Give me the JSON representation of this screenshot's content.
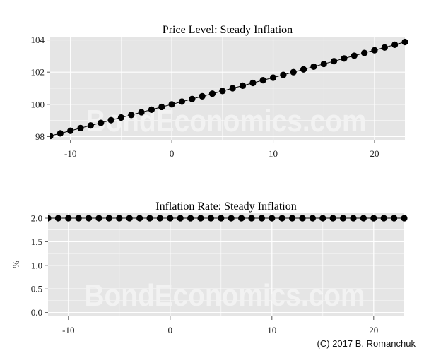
{
  "chart_data": [
    {
      "type": "line",
      "title": "Price Level: Steady Inflation",
      "xlabel": "",
      "ylabel": "",
      "xlim": [
        -12,
        23
      ],
      "ylim": [
        97.8,
        104.2
      ],
      "x_ticks": [
        -10,
        0,
        10,
        20
      ],
      "y_ticks": [
        98,
        100,
        102,
        104
      ],
      "grid": true,
      "markers": true,
      "series": [
        {
          "name": "Price Level",
          "x": [
            -12,
            -11,
            -10,
            -9,
            -8,
            -7,
            -6,
            -5,
            -4,
            -3,
            -2,
            -1,
            0,
            1,
            2,
            3,
            4,
            5,
            6,
            7,
            8,
            9,
            10,
            11,
            12,
            13,
            14,
            15,
            16,
            17,
            18,
            19,
            20,
            21,
            22,
            23
          ],
          "values": [
            98.04,
            98.2,
            98.36,
            98.53,
            98.69,
            98.85,
            99.02,
            99.18,
            99.34,
            99.51,
            99.67,
            99.84,
            100.0,
            100.17,
            100.33,
            100.5,
            100.66,
            100.83,
            101.0,
            101.16,
            101.33,
            101.5,
            101.66,
            101.83,
            102.0,
            102.17,
            102.34,
            102.51,
            102.68,
            102.85,
            103.02,
            103.19,
            103.36,
            103.53,
            103.7,
            103.87
          ]
        }
      ]
    },
    {
      "type": "line",
      "title": "Inflation Rate: Steady Inflation",
      "xlabel": "",
      "ylabel": "%",
      "xlim": [
        -12,
        23
      ],
      "ylim": [
        -0.08,
        2.12
      ],
      "x_ticks": [
        -10,
        0,
        10,
        20
      ],
      "y_ticks": [
        0.0,
        0.5,
        1.0,
        1.5,
        2.0
      ],
      "grid": true,
      "markers": true,
      "series": [
        {
          "name": "Inflation Rate",
          "x": [
            -12,
            -11,
            -10,
            -9,
            -8,
            -7,
            -6,
            -5,
            -4,
            -3,
            -2,
            -1,
            0,
            1,
            2,
            3,
            4,
            5,
            6,
            7,
            8,
            9,
            10,
            11,
            12,
            13,
            14,
            15,
            16,
            17,
            18,
            19,
            20,
            21,
            22,
            23
          ],
          "values": [
            2.0,
            2.0,
            2.0,
            2.0,
            2.0,
            2.0,
            2.0,
            2.0,
            2.0,
            2.0,
            2.0,
            2.0,
            2.0,
            2.0,
            2.0,
            2.0,
            2.0,
            2.0,
            2.0,
            2.0,
            2.0,
            2.0,
            2.0,
            2.0,
            2.0,
            2.0,
            2.0,
            2.0,
            2.0,
            2.0,
            2.0,
            2.0,
            2.0,
            2.0,
            2.0,
            2.0
          ]
        }
      ]
    }
  ],
  "watermark": "BondEconomics.com",
  "credit": "(C) 2017 B. Romanchuk",
  "colors": {
    "panel_bg": "#e5e5e5",
    "grid": "#ffffff",
    "series": "#000000",
    "watermark": "#f2f2f2"
  }
}
